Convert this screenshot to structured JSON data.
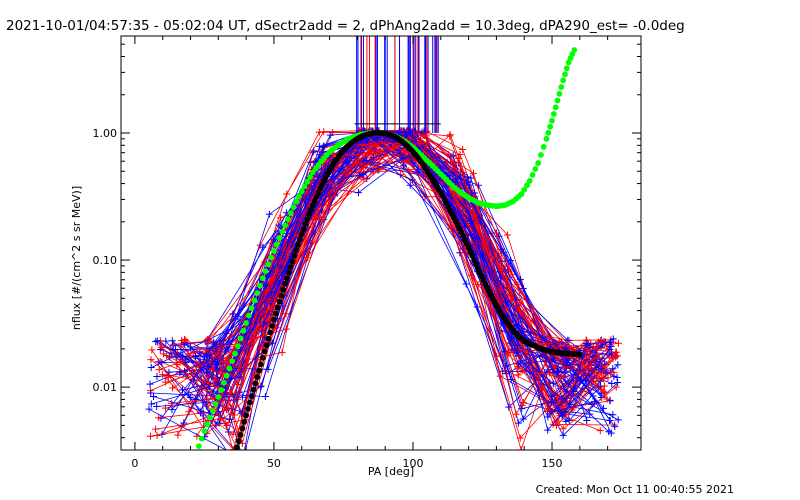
{
  "chart_data": {
    "type": "line",
    "title": "2021-10-01/04:57:35 - 05:02:04 UT, dSectr2add = 2, dPhAng2add = 10.3deg, dPA290_est= -0.0deg",
    "xlabel": "PA [deg]",
    "ylabel": "nflux [#/(cm^2 s sr MeV)]",
    "footer": "Created: Mon Oct 11 00:40:55 2021",
    "x_scale": "linear",
    "y_scale": "log",
    "xlim": [
      -5,
      182
    ],
    "ylim": [
      0.0032,
      5.8
    ],
    "x_ticks": [
      {
        "value": 0,
        "label": "0"
      },
      {
        "value": 50,
        "label": "50"
      },
      {
        "value": 100,
        "label": "100"
      },
      {
        "value": 150,
        "label": "150"
      }
    ],
    "y_ticks": [
      {
        "value": 0.01,
        "label": "0.01"
      },
      {
        "value": 0.1,
        "label": "0.10"
      },
      {
        "value": 1,
        "label": "1.00"
      }
    ],
    "colors": {
      "red_series": "#ff0000",
      "blue_series": "#0000ff",
      "black_fit": "#000000",
      "green_fit": "#00ff00"
    },
    "series": [
      {
        "color": "green",
        "x": [
          22,
          25,
          28,
          31,
          34,
          37,
          40,
          43,
          46,
          49,
          52,
          55,
          58,
          61,
          64,
          67,
          70,
          73,
          76,
          79,
          82,
          85,
          88,
          91,
          94,
          97,
          100,
          103,
          106,
          109,
          112,
          115,
          118,
          121,
          124,
          127,
          130,
          133,
          136,
          139,
          142,
          145,
          148,
          150,
          152,
          154,
          156,
          158
        ],
        "y": [
          0.003,
          0.0045,
          0.0065,
          0.0095,
          0.014,
          0.021,
          0.032,
          0.048,
          0.072,
          0.105,
          0.15,
          0.21,
          0.29,
          0.38,
          0.49,
          0.6,
          0.71,
          0.8,
          0.88,
          0.94,
          0.98,
          1.0,
          1.0,
          0.98,
          0.93,
          0.86,
          0.77,
          0.67,
          0.58,
          0.5,
          0.43,
          0.37,
          0.33,
          0.3,
          0.28,
          0.27,
          0.265,
          0.27,
          0.29,
          0.33,
          0.42,
          0.58,
          0.9,
          1.25,
          1.8,
          2.6,
          3.6,
          4.5
        ]
      },
      {
        "color": "black",
        "x": [
          36,
          38,
          40,
          42,
          44,
          46,
          48,
          50,
          52,
          54,
          56,
          58,
          60,
          62,
          64,
          66,
          68,
          70,
          72,
          74,
          76,
          78,
          80,
          82,
          84,
          86,
          88,
          90,
          92,
          94,
          96,
          98,
          100,
          102,
          104,
          106,
          108,
          110,
          112,
          114,
          116,
          118,
          120,
          122,
          124,
          126,
          128,
          130,
          132,
          134,
          136,
          138,
          140,
          142,
          144,
          146,
          148,
          150,
          152,
          154,
          156,
          158,
          160
        ],
        "y": [
          0.003,
          0.0042,
          0.006,
          0.0085,
          0.012,
          0.017,
          0.024,
          0.034,
          0.047,
          0.065,
          0.088,
          0.12,
          0.16,
          0.21,
          0.27,
          0.34,
          0.42,
          0.51,
          0.6,
          0.69,
          0.77,
          0.84,
          0.9,
          0.95,
          0.98,
          1.0,
          1.0,
          0.99,
          0.96,
          0.92,
          0.86,
          0.79,
          0.71,
          0.63,
          0.55,
          0.47,
          0.4,
          0.34,
          0.28,
          0.23,
          0.19,
          0.155,
          0.125,
          0.1,
          0.08,
          0.065,
          0.053,
          0.044,
          0.037,
          0.032,
          0.028,
          0.025,
          0.023,
          0.022,
          0.021,
          0.02,
          0.0195,
          0.019,
          0.0187,
          0.0185,
          0.0183,
          0.0182,
          0.0181
        ]
      }
    ]
  }
}
